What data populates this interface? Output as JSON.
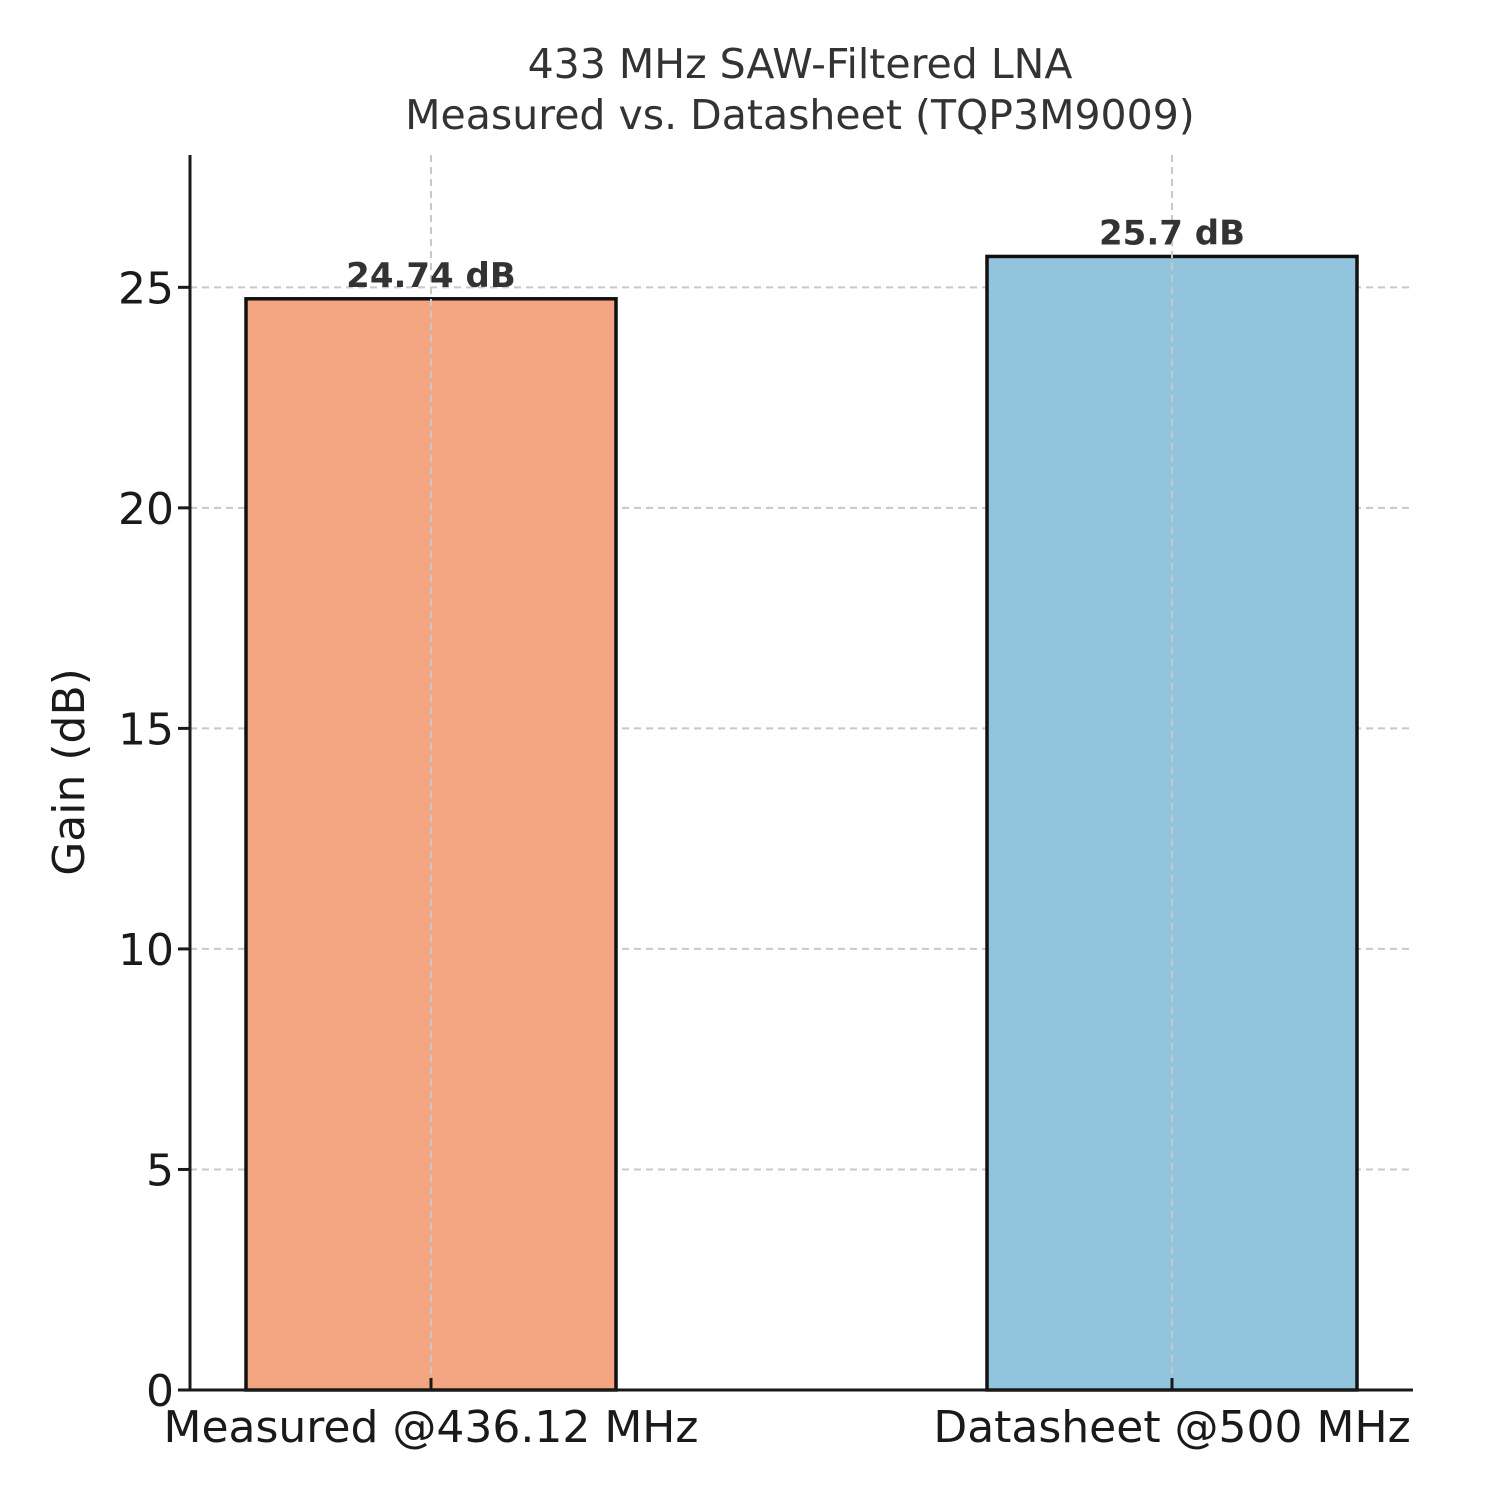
{
  "chart_data": {
    "type": "bar",
    "title_line1": "433 MHz SAW-Filtered LNA",
    "title_line2": "Measured vs. Datasheet (TQP3M9009)",
    "ylabel": "Gain (dB)",
    "xlabel": "",
    "ylim": [
      0,
      28
    ],
    "yticks": [
      0,
      5,
      10,
      15,
      20,
      25
    ],
    "grid": true,
    "categories": [
      "Measured @436.12 MHz",
      "Datasheet @500 MHz"
    ],
    "values": [
      24.74,
      25.7
    ],
    "value_labels": [
      "24.74 dB",
      "25.7 dB"
    ],
    "colors": [
      "#f4a683",
      "#93c4dd"
    ]
  }
}
